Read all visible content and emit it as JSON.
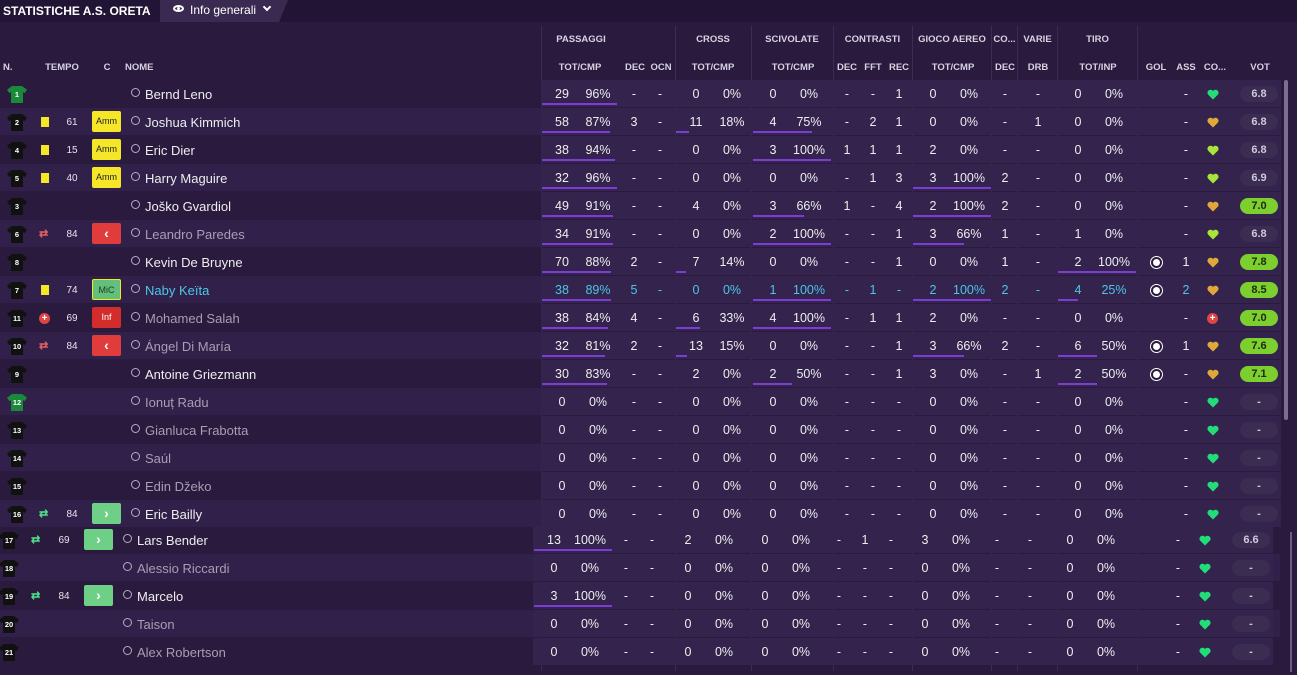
{
  "header": {
    "title": "STATISTICHE A.S. ORETA",
    "view_label": "Info generali"
  },
  "groups": {
    "passaggi": "PASSAGGI",
    "cross": "CROSS",
    "scivolate": "SCIVOLATE",
    "contrasti": "CONTRASTI",
    "gioco_aereo": "GIOCO AEREO",
    "co": "CO...",
    "varie": "VARIE",
    "tiro": "TIRO"
  },
  "columns": {
    "n": "N.",
    "tempo": "TEMPO",
    "c": "C",
    "nome": "NOME",
    "p_tot": "TOT/CMP",
    "p_dec": "DEC",
    "p_ocn": "OCN",
    "c_tot": "TOT/CMP",
    "s_tot": "TOT/CMP",
    "ct_dec": "DEC",
    "ct_fft": "FFT",
    "ct_rec": "REC",
    "ga_tot": "TOT/CMP",
    "co_dec": "DEC",
    "v_drb": "DRB",
    "t_tot": "TOT/INP",
    "gol": "GOL",
    "ass": "ASS",
    "con": "CO...",
    "vot": "VOT"
  },
  "colors": {
    "bar": "#7b3dd6",
    "heart_green": "#22dd77",
    "rating_green": "#7ccf2e"
  },
  "players": [
    {
      "num": "1",
      "gk": true,
      "tempo": "",
      "badge": "",
      "name": "Bernd Leno",
      "p": [
        "29",
        "96%"
      ],
      "pdec": "-",
      "pocn": "-",
      "c": [
        "0",
        "0%"
      ],
      "s": [
        "0",
        "0%"
      ],
      "ctdec": "-",
      "ctfft": "-",
      "ctrec": "1",
      "ga": [
        "0",
        "0%"
      ],
      "codec": "-",
      "drb": "-",
      "t": [
        "0",
        "0%"
      ],
      "gol": "",
      "ass": "-",
      "morale": "good",
      "vot": "6.8"
    },
    {
      "num": "2",
      "tempo": "61",
      "card": true,
      "badge": "Amm",
      "name": "Joshua Kimmich",
      "p": [
        "58",
        "87%"
      ],
      "pdec": "3",
      "pocn": "-",
      "c": [
        "11",
        "18%"
      ],
      "s": [
        "4",
        "75%"
      ],
      "ctdec": "-",
      "ctfft": "2",
      "ctrec": "1",
      "ga": [
        "0",
        "0%"
      ],
      "codec": "-",
      "drb": "1",
      "t": [
        "0",
        "0%"
      ],
      "gol": "",
      "ass": "-",
      "morale": "mid",
      "vot": "6.8"
    },
    {
      "num": "4",
      "tempo": "15",
      "card": true,
      "badge": "Amm",
      "name": "Eric Dier",
      "p": [
        "38",
        "94%"
      ],
      "pdec": "-",
      "pocn": "-",
      "c": [
        "0",
        "0%"
      ],
      "s": [
        "3",
        "100%"
      ],
      "ctdec": "1",
      "ctfft": "1",
      "ctrec": "1",
      "ga": [
        "2",
        "0%"
      ],
      "codec": "-",
      "drb": "-",
      "t": [
        "0",
        "0%"
      ],
      "gol": "",
      "ass": "-",
      "morale": "lime",
      "vot": "6.8"
    },
    {
      "num": "5",
      "tempo": "40",
      "card": true,
      "badge": "Amm",
      "name": "Harry Maguire",
      "p": [
        "32",
        "96%"
      ],
      "pdec": "-",
      "pocn": "-",
      "c": [
        "0",
        "0%"
      ],
      "s": [
        "0",
        "0%"
      ],
      "ctdec": "-",
      "ctfft": "1",
      "ctrec": "3",
      "ga": [
        "3",
        "100%"
      ],
      "codec": "2",
      "drb": "-",
      "t": [
        "0",
        "0%"
      ],
      "gol": "",
      "ass": "-",
      "morale": "lime",
      "vot": "6.9"
    },
    {
      "num": "3",
      "tempo": "",
      "badge": "",
      "name": "Joško Gvardiol",
      "p": [
        "49",
        "91%"
      ],
      "pdec": "-",
      "pocn": "-",
      "c": [
        "4",
        "0%"
      ],
      "s": [
        "3",
        "66%"
      ],
      "ctdec": "1",
      "ctfft": "-",
      "ctrec": "4",
      "ga": [
        "2",
        "100%"
      ],
      "codec": "2",
      "drb": "-",
      "t": [
        "0",
        "0%"
      ],
      "gol": "",
      "ass": "-",
      "morale": "mid",
      "vot": "7.0",
      "vhl": true
    },
    {
      "num": "6",
      "tempo": "84",
      "sub": "out",
      "badge": "out",
      "dim": true,
      "name": "Leandro Paredes",
      "p": [
        "34",
        "91%"
      ],
      "pdec": "-",
      "pocn": "-",
      "c": [
        "0",
        "0%"
      ],
      "s": [
        "2",
        "100%"
      ],
      "ctdec": "-",
      "ctfft": "-",
      "ctrec": "1",
      "ga": [
        "3",
        "66%"
      ],
      "codec": "1",
      "drb": "-",
      "t": [
        "1",
        "0%"
      ],
      "gol": "",
      "ass": "-",
      "morale": "lime",
      "vot": "6.8"
    },
    {
      "num": "8",
      "tempo": "",
      "badge": "",
      "name": "Kevin De Bruyne",
      "p": [
        "70",
        "88%"
      ],
      "pdec": "2",
      "pocn": "-",
      "c": [
        "7",
        "14%"
      ],
      "s": [
        "0",
        "0%"
      ],
      "ctdec": "-",
      "ctfft": "-",
      "ctrec": "1",
      "ga": [
        "0",
        "0%"
      ],
      "codec": "1",
      "drb": "-",
      "t": [
        "2",
        "100%"
      ],
      "gol": "ball",
      "ass": "1",
      "morale": "mid",
      "vot": "7.8",
      "vhl": true
    },
    {
      "num": "7",
      "tempo": "74",
      "card": true,
      "badge": "MiC",
      "hl": true,
      "name": "Naby Keïta",
      "p": [
        "38",
        "89%"
      ],
      "pdec": "5",
      "pocn": "-",
      "c": [
        "0",
        "0%"
      ],
      "s": [
        "1",
        "100%"
      ],
      "ctdec": "-",
      "ctfft": "1",
      "ctrec": "-",
      "ga": [
        "2",
        "100%"
      ],
      "codec": "2",
      "drb": "-",
      "t": [
        "4",
        "25%"
      ],
      "gol": "ball",
      "ass": "2",
      "morale": "mid",
      "vot": "8.5",
      "vhl": true
    },
    {
      "num": "11",
      "tempo": "69",
      "inj": true,
      "badge": "Inf",
      "dim": true,
      "name": "Mohamed Salah",
      "p": [
        "38",
        "84%"
      ],
      "pdec": "4",
      "pocn": "-",
      "c": [
        "6",
        "33%"
      ],
      "s": [
        "4",
        "100%"
      ],
      "ctdec": "-",
      "ctfft": "1",
      "ctrec": "1",
      "ga": [
        "2",
        "0%"
      ],
      "codec": "-",
      "drb": "-",
      "t": [
        "0",
        "0%"
      ],
      "gol": "",
      "ass": "-",
      "morale": "inj",
      "vot": "7.0",
      "vhl": true
    },
    {
      "num": "10",
      "tempo": "84",
      "sub": "out",
      "badge": "out",
      "dim": true,
      "name": "Ángel Di María",
      "p": [
        "32",
        "81%"
      ],
      "pdec": "2",
      "pocn": "-",
      "c": [
        "13",
        "15%"
      ],
      "s": [
        "0",
        "0%"
      ],
      "ctdec": "-",
      "ctfft": "-",
      "ctrec": "1",
      "ga": [
        "3",
        "66%"
      ],
      "codec": "2",
      "drb": "-",
      "t": [
        "6",
        "50%"
      ],
      "gol": "ball",
      "ass": "1",
      "morale": "mid",
      "vot": "7.6",
      "vhl": true
    },
    {
      "num": "9",
      "tempo": "",
      "badge": "",
      "name": "Antoine Griezmann",
      "p": [
        "30",
        "83%"
      ],
      "pdec": "-",
      "pocn": "-",
      "c": [
        "2",
        "0%"
      ],
      "s": [
        "2",
        "50%"
      ],
      "ctdec": "-",
      "ctfft": "-",
      "ctrec": "1",
      "ga": [
        "3",
        "0%"
      ],
      "codec": "-",
      "drb": "1",
      "t": [
        "2",
        "50%"
      ],
      "gol": "ball",
      "ass": "-",
      "morale": "mid",
      "vot": "7.1",
      "vhl": true
    },
    {
      "num": "12",
      "gk": true,
      "tempo": "",
      "badge": "",
      "dim": true,
      "name": "Ionuț Radu",
      "p": [
        "0",
        "0%"
      ],
      "pdec": "-",
      "pocn": "-",
      "c": [
        "0",
        "0%"
      ],
      "s": [
        "0",
        "0%"
      ],
      "ctdec": "-",
      "ctfft": "-",
      "ctrec": "-",
      "ga": [
        "0",
        "0%"
      ],
      "codec": "-",
      "drb": "-",
      "t": [
        "0",
        "0%"
      ],
      "gol": "",
      "ass": "-",
      "morale": "good",
      "vot": "-"
    },
    {
      "num": "13",
      "tempo": "",
      "badge": "",
      "dim": true,
      "name": "Gianluca Frabotta",
      "p": [
        "0",
        "0%"
      ],
      "pdec": "-",
      "pocn": "-",
      "c": [
        "0",
        "0%"
      ],
      "s": [
        "0",
        "0%"
      ],
      "ctdec": "-",
      "ctfft": "-",
      "ctrec": "-",
      "ga": [
        "0",
        "0%"
      ],
      "codec": "-",
      "drb": "-",
      "t": [
        "0",
        "0%"
      ],
      "gol": "",
      "ass": "-",
      "morale": "good",
      "vot": "-"
    },
    {
      "num": "14",
      "tempo": "",
      "badge": "",
      "dim": true,
      "name": "Saúl",
      "p": [
        "0",
        "0%"
      ],
      "pdec": "-",
      "pocn": "-",
      "c": [
        "0",
        "0%"
      ],
      "s": [
        "0",
        "0%"
      ],
      "ctdec": "-",
      "ctfft": "-",
      "ctrec": "-",
      "ga": [
        "0",
        "0%"
      ],
      "codec": "-",
      "drb": "-",
      "t": [
        "0",
        "0%"
      ],
      "gol": "",
      "ass": "-",
      "morale": "good",
      "vot": "-"
    },
    {
      "num": "15",
      "tempo": "",
      "badge": "",
      "dim": true,
      "name": "Edin Džeko",
      "p": [
        "0",
        "0%"
      ],
      "pdec": "-",
      "pocn": "-",
      "c": [
        "0",
        "0%"
      ],
      "s": [
        "0",
        "0%"
      ],
      "ctdec": "-",
      "ctfft": "-",
      "ctrec": "-",
      "ga": [
        "0",
        "0%"
      ],
      "codec": "-",
      "drb": "-",
      "t": [
        "0",
        "0%"
      ],
      "gol": "",
      "ass": "-",
      "morale": "good",
      "vot": "-"
    },
    {
      "num": "16",
      "tempo": "84",
      "sub": "in",
      "badge": "in",
      "name": "Eric Bailly",
      "p": [
        "0",
        "0%"
      ],
      "pdec": "-",
      "pocn": "-",
      "c": [
        "0",
        "0%"
      ],
      "s": [
        "0",
        "0%"
      ],
      "ctdec": "-",
      "ctfft": "-",
      "ctrec": "-",
      "ga": [
        "0",
        "0%"
      ],
      "codec": "-",
      "drb": "-",
      "t": [
        "0",
        "0%"
      ],
      "gol": "",
      "ass": "-",
      "morale": "good",
      "vot": "-"
    },
    {
      "num": "17",
      "tempo": "69",
      "sub": "in",
      "badge": "in",
      "shift": true,
      "name": "Lars Bender",
      "p": [
        "13",
        "100%"
      ],
      "pdec": "-",
      "pocn": "-",
      "c": [
        "2",
        "0%"
      ],
      "s": [
        "0",
        "0%"
      ],
      "ctdec": "-",
      "ctfft": "1",
      "ctrec": "-",
      "ga": [
        "3",
        "0%"
      ],
      "codec": "-",
      "drb": "-",
      "t": [
        "0",
        "0%"
      ],
      "gol": "",
      "ass": "-",
      "morale": "good",
      "vot": "6.6"
    },
    {
      "num": "18",
      "tempo": "",
      "badge": "",
      "shift": true,
      "dim": true,
      "name": "Alessio Riccardi",
      "p": [
        "0",
        "0%"
      ],
      "pdec": "-",
      "pocn": "-",
      "c": [
        "0",
        "0%"
      ],
      "s": [
        "0",
        "0%"
      ],
      "ctdec": "-",
      "ctfft": "-",
      "ctrec": "-",
      "ga": [
        "0",
        "0%"
      ],
      "codec": "-",
      "drb": "-",
      "t": [
        "0",
        "0%"
      ],
      "gol": "",
      "ass": "-",
      "morale": "good",
      "vot": "-"
    },
    {
      "num": "19",
      "tempo": "84",
      "sub": "in",
      "badge": "in",
      "shift": true,
      "name": "Marcelo",
      "p": [
        "3",
        "100%"
      ],
      "pdec": "-",
      "pocn": "-",
      "c": [
        "0",
        "0%"
      ],
      "s": [
        "0",
        "0%"
      ],
      "ctdec": "-",
      "ctfft": "-",
      "ctrec": "-",
      "ga": [
        "0",
        "0%"
      ],
      "codec": "-",
      "drb": "-",
      "t": [
        "0",
        "0%"
      ],
      "gol": "",
      "ass": "-",
      "morale": "good",
      "vot": "-"
    },
    {
      "num": "20",
      "tempo": "",
      "badge": "",
      "shift": true,
      "dim": true,
      "name": "Taison",
      "p": [
        "0",
        "0%"
      ],
      "pdec": "-",
      "pocn": "-",
      "c": [
        "0",
        "0%"
      ],
      "s": [
        "0",
        "0%"
      ],
      "ctdec": "-",
      "ctfft": "-",
      "ctrec": "-",
      "ga": [
        "0",
        "0%"
      ],
      "codec": "-",
      "drb": "-",
      "t": [
        "0",
        "0%"
      ],
      "gol": "",
      "ass": "-",
      "morale": "good",
      "vot": "-"
    },
    {
      "num": "21",
      "tempo": "",
      "badge": "",
      "shift": true,
      "dim": true,
      "name": "Alex Robertson",
      "p": [
        "0",
        "0%"
      ],
      "pdec": "-",
      "pocn": "-",
      "c": [
        "0",
        "0%"
      ],
      "s": [
        "0",
        "0%"
      ],
      "ctdec": "-",
      "ctfft": "-",
      "ctrec": "-",
      "ga": [
        "0",
        "0%"
      ],
      "codec": "-",
      "drb": "-",
      "t": [
        "0",
        "0%"
      ],
      "gol": "",
      "ass": "-",
      "morale": "good",
      "vot": "-"
    }
  ]
}
